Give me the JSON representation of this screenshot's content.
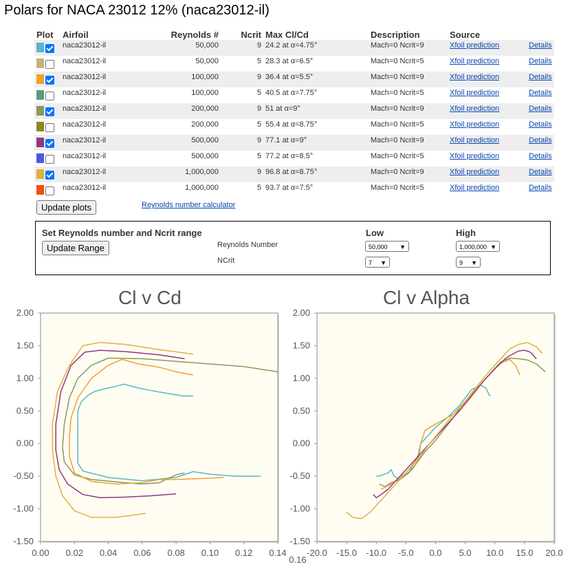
{
  "page_title": "Polars for NACA 23012 12% (naca23012-il)",
  "table": {
    "headers": {
      "plot": "Plot",
      "airfoil": "Airfoil",
      "reynolds": "Reynolds #",
      "ncrit": "Ncrit",
      "max": "Max Cl/Cd",
      "description": "Description",
      "source": "Source"
    },
    "rows": [
      {
        "color": "#5bb4cc",
        "checked": true,
        "airfoil": "naca23012-il",
        "reynolds": "50,000",
        "ncrit": "9",
        "max": "24.2 at α=4.75°",
        "description": "Mach=0 Ncrit=9",
        "source": "Xfoil prediction",
        "details": "Details"
      },
      {
        "color": "#c9b27a",
        "checked": false,
        "airfoil": "naca23012-il",
        "reynolds": "50,000",
        "ncrit": "5",
        "max": "28.3 at α=6.5°",
        "description": "Mach=0 Ncrit=5",
        "source": "Xfoil prediction",
        "details": "Details"
      },
      {
        "color": "#f0a030",
        "checked": true,
        "airfoil": "naca23012-il",
        "reynolds": "100,000",
        "ncrit": "9",
        "max": "36.4 at α=5.5°",
        "description": "Mach=0 Ncrit=9",
        "source": "Xfoil prediction",
        "details": "Details"
      },
      {
        "color": "#5a9a80",
        "checked": false,
        "airfoil": "naca23012-il",
        "reynolds": "100,000",
        "ncrit": "5",
        "max": "40.5 at α=7.75°",
        "description": "Mach=0 Ncrit=5",
        "source": "Xfoil prediction",
        "details": "Details"
      },
      {
        "color": "#8a9860",
        "checked": true,
        "airfoil": "naca23012-il",
        "reynolds": "200,000",
        "ncrit": "9",
        "max": "51 at α=9°",
        "description": "Mach=0 Ncrit=9",
        "source": "Xfoil prediction",
        "details": "Details"
      },
      {
        "color": "#8a8a20",
        "checked": false,
        "airfoil": "naca23012-il",
        "reynolds": "200,000",
        "ncrit": "5",
        "max": "55.4 at α=8.75°",
        "description": "Mach=0 Ncrit=5",
        "source": "Xfoil prediction",
        "details": "Details"
      },
      {
        "color": "#903880",
        "checked": true,
        "airfoil": "naca23012-il",
        "reynolds": "500,000",
        "ncrit": "9",
        "max": "77.1 at α=9°",
        "description": "Mach=0 Ncrit=9",
        "source": "Xfoil prediction",
        "details": "Details"
      },
      {
        "color": "#4a5ae0",
        "checked": false,
        "airfoil": "naca23012-il",
        "reynolds": "500,000",
        "ncrit": "5",
        "max": "77.2 at α=8.5°",
        "description": "Mach=0 Ncrit=5",
        "source": "Xfoil prediction",
        "details": "Details"
      },
      {
        "color": "#e0b040",
        "checked": true,
        "airfoil": "naca23012-il",
        "reynolds": "1,000,000",
        "ncrit": "9",
        "max": "96.8 at α=8.75°",
        "description": "Mach=0 Ncrit=9",
        "source": "Xfoil prediction",
        "details": "Details"
      },
      {
        "color": "#f05010",
        "checked": false,
        "airfoil": "naca23012-il",
        "reynolds": "1,000,000",
        "ncrit": "5",
        "max": "93.7 at α=7.5°",
        "description": "Mach=0 Ncrit=5",
        "source": "Xfoil prediction",
        "details": "Details"
      }
    ]
  },
  "update_plots_label": "Update plots",
  "reynolds_calc_label": "Reynolds number calculator",
  "range": {
    "title": "Set Reynolds number and Ncrit range",
    "low_label": "Low",
    "high_label": "High",
    "update_label": "Update Range",
    "reynolds_label": "Reynolds Number",
    "ncrit_label": "NCrit",
    "re_low": "50,000",
    "re_high": "1,000,000",
    "ncrit_low": "7",
    "ncrit_high": "9"
  },
  "chart_data": [
    {
      "type": "line",
      "title": "Cl v Cd",
      "xlim": [
        0.0,
        0.14
      ],
      "ylim": [
        -1.5,
        2.0
      ],
      "x_ticks": [
        "0.00",
        "0.02",
        "0.04",
        "0.06",
        "0.08",
        "0.10",
        "0.12",
        "0.14"
      ],
      "y_ticks": [
        "2.00",
        "1.50",
        "1.00",
        "0.50",
        "0.00",
        "-0.50",
        "-1.00",
        "-1.50"
      ],
      "extra_label": "0.16",
      "series": [
        {
          "color": "#5bb4cc",
          "points": [
            [
              0.09,
              0.73
            ],
            [
              0.084,
              0.73
            ],
            [
              0.07,
              0.79
            ],
            [
              0.058,
              0.85
            ],
            [
              0.049,
              0.91
            ],
            [
              0.045,
              0.88
            ],
            [
              0.038,
              0.84
            ],
            [
              0.032,
              0.8
            ],
            [
              0.028,
              0.74
            ],
            [
              0.024,
              0.64
            ],
            [
              0.022,
              0.5
            ],
            [
              0.022,
              0.3
            ],
            [
              0.022,
              0.08
            ],
            [
              0.022,
              -0.05
            ],
            [
              0.022,
              -0.3
            ],
            [
              0.025,
              -0.42
            ],
            [
              0.04,
              -0.52
            ],
            [
              0.06,
              -0.57
            ],
            [
              0.08,
              -0.52
            ],
            [
              0.09,
              -0.43
            ],
            [
              0.1,
              -0.47
            ],
            [
              0.115,
              -0.5
            ],
            [
              0.13,
              -0.5
            ]
          ]
        },
        {
          "color": "#8a9860",
          "points": [
            [
              0.14,
              1.1
            ],
            [
              0.12,
              1.18
            ],
            [
              0.1,
              1.22
            ],
            [
              0.08,
              1.26
            ],
            [
              0.06,
              1.3
            ],
            [
              0.04,
              1.31
            ],
            [
              0.03,
              1.2
            ],
            [
              0.022,
              1.0
            ],
            [
              0.017,
              0.7
            ],
            [
              0.014,
              0.3
            ],
            [
              0.013,
              -0.05
            ],
            [
              0.014,
              -0.28
            ],
            [
              0.02,
              -0.48
            ],
            [
              0.03,
              -0.55
            ],
            [
              0.05,
              -0.6
            ],
            [
              0.06,
              -0.62
            ],
            [
              0.07,
              -0.6
            ],
            [
              0.08,
              -0.48
            ],
            [
              0.085,
              -0.45
            ]
          ]
        },
        {
          "color": "#f0a030",
          "points": [
            [
              0.09,
              1.05
            ],
            [
              0.08,
              1.1
            ],
            [
              0.07,
              1.17
            ],
            [
              0.058,
              1.22
            ],
            [
              0.048,
              1.29
            ],
            [
              0.04,
              1.2
            ],
            [
              0.03,
              1.0
            ],
            [
              0.022,
              0.7
            ],
            [
              0.018,
              0.4
            ],
            [
              0.017,
              0.1
            ],
            [
              0.017,
              -0.2
            ],
            [
              0.02,
              -0.45
            ],
            [
              0.03,
              -0.58
            ],
            [
              0.045,
              -0.62
            ],
            [
              0.06,
              -0.6
            ],
            [
              0.07,
              -0.55
            ],
            [
              0.08,
              -0.55
            ],
            [
              0.1,
              -0.53
            ],
            [
              0.108,
              -0.52
            ]
          ]
        },
        {
          "color": "#903880",
          "points": [
            [
              0.085,
              1.3
            ],
            [
              0.07,
              1.36
            ],
            [
              0.05,
              1.41
            ],
            [
              0.035,
              1.43
            ],
            [
              0.026,
              1.4
            ],
            [
              0.018,
              1.2
            ],
            [
              0.012,
              0.8
            ],
            [
              0.009,
              0.3
            ],
            [
              0.009,
              -0.1
            ],
            [
              0.011,
              -0.4
            ],
            [
              0.016,
              -0.62
            ],
            [
              0.025,
              -0.78
            ],
            [
              0.035,
              -0.83
            ],
            [
              0.05,
              -0.82
            ],
            [
              0.065,
              -0.8
            ],
            [
              0.08,
              -0.77
            ]
          ]
        },
        {
          "color": "#e0b040",
          "points": [
            [
              0.09,
              1.37
            ],
            [
              0.07,
              1.44
            ],
            [
              0.05,
              1.52
            ],
            [
              0.035,
              1.55
            ],
            [
              0.025,
              1.5
            ],
            [
              0.017,
              1.2
            ],
            [
              0.01,
              0.8
            ],
            [
              0.007,
              0.3
            ],
            [
              0.007,
              -0.1
            ],
            [
              0.009,
              -0.5
            ],
            [
              0.013,
              -0.8
            ],
            [
              0.02,
              -1.03
            ],
            [
              0.03,
              -1.13
            ],
            [
              0.045,
              -1.13
            ],
            [
              0.062,
              -1.07
            ]
          ]
        }
      ]
    },
    {
      "type": "line",
      "title": "Cl v Alpha",
      "xlim": [
        -20.0,
        20.0
      ],
      "ylim": [
        -1.5,
        2.0
      ],
      "x_ticks": [
        "-20.0",
        "-15.0",
        "-10.0",
        "-5.0",
        "0.0",
        "5.0",
        "10.0",
        "15.0",
        "20.0"
      ],
      "y_ticks": [
        "2.00",
        "1.50",
        "1.00",
        "0.50",
        "0.00",
        "-0.50",
        "-1.00",
        "-1.50"
      ],
      "series": [
        {
          "color": "#5bb4cc",
          "points": [
            [
              -10,
              -0.5
            ],
            [
              -9.5,
              -0.5
            ],
            [
              -9,
              -0.48
            ],
            [
              -8,
              -0.45
            ],
            [
              -7.5,
              -0.4
            ],
            [
              -7,
              -0.5
            ],
            [
              -6,
              -0.55
            ],
            [
              -4.5,
              -0.45
            ],
            [
              -3,
              -0.2
            ],
            [
              -2.5,
              0.0
            ],
            [
              -1.5,
              0.1
            ],
            [
              0,
              0.25
            ],
            [
              2,
              0.4
            ],
            [
              4,
              0.58
            ],
            [
              5,
              0.7
            ],
            [
              6,
              0.82
            ],
            [
              7,
              0.87
            ],
            [
              7.5,
              0.9
            ],
            [
              8.5,
              0.85
            ],
            [
              9,
              0.75
            ],
            [
              9.3,
              0.73
            ]
          ]
        },
        {
          "color": "#8a9860",
          "points": [
            [
              -9.5,
              -0.62
            ],
            [
              -8.5,
              -0.66
            ],
            [
              -7.5,
              -0.6
            ],
            [
              -6,
              -0.55
            ],
            [
              -4,
              -0.4
            ],
            [
              -2,
              -0.15
            ],
            [
              0,
              0.05
            ],
            [
              3,
              0.4
            ],
            [
              5,
              0.65
            ],
            [
              7,
              0.85
            ],
            [
              9,
              1.05
            ],
            [
              11,
              1.25
            ],
            [
              12.5,
              1.31
            ],
            [
              14,
              1.3
            ],
            [
              15.5,
              1.28
            ],
            [
              17,
              1.22
            ],
            [
              18.5,
              1.1
            ]
          ]
        },
        {
          "color": "#f0a030",
          "points": [
            [
              -9.2,
              -0.7
            ],
            [
              -7.5,
              -0.62
            ],
            [
              -5,
              -0.45
            ],
            [
              -2.8,
              -0.2
            ],
            [
              -2.5,
              0.0
            ],
            [
              -1.8,
              0.2
            ],
            [
              0,
              0.3
            ],
            [
              3,
              0.45
            ],
            [
              5,
              0.62
            ],
            [
              7,
              0.85
            ],
            [
              9,
              1.05
            ],
            [
              11,
              1.23
            ],
            [
              12.5,
              1.29
            ],
            [
              13.5,
              1.2
            ],
            [
              14.2,
              1.05
            ]
          ]
        },
        {
          "color": "#903880",
          "points": [
            [
              -10.5,
              -0.78
            ],
            [
              -10,
              -0.83
            ],
            [
              -9.5,
              -0.8
            ],
            [
              -8,
              -0.7
            ],
            [
              -6,
              -0.5
            ],
            [
              -4,
              -0.3
            ],
            [
              -2,
              -0.1
            ],
            [
              0,
              0.1
            ],
            [
              2,
              0.3
            ],
            [
              4,
              0.5
            ],
            [
              6,
              0.72
            ],
            [
              8,
              0.95
            ],
            [
              10,
              1.15
            ],
            [
              12,
              1.32
            ],
            [
              14,
              1.42
            ],
            [
              15,
              1.43
            ],
            [
              16,
              1.4
            ],
            [
              17,
              1.3
            ]
          ]
        },
        {
          "color": "#e0b040",
          "points": [
            [
              -15,
              -1.05
            ],
            [
              -14,
              -1.13
            ],
            [
              -12.5,
              -1.15
            ],
            [
              -11,
              -1.05
            ],
            [
              -9,
              -0.85
            ],
            [
              -7,
              -0.65
            ],
            [
              -5,
              -0.45
            ],
            [
              -3,
              -0.25
            ],
            [
              -1,
              0.0
            ],
            [
              1,
              0.22
            ],
            [
              3,
              0.45
            ],
            [
              5,
              0.65
            ],
            [
              7,
              0.88
            ],
            [
              9,
              1.1
            ],
            [
              11,
              1.3
            ],
            [
              12.5,
              1.45
            ],
            [
              14,
              1.52
            ],
            [
              15.5,
              1.55
            ],
            [
              17,
              1.48
            ],
            [
              18,
              1.38
            ]
          ]
        }
      ]
    }
  ]
}
